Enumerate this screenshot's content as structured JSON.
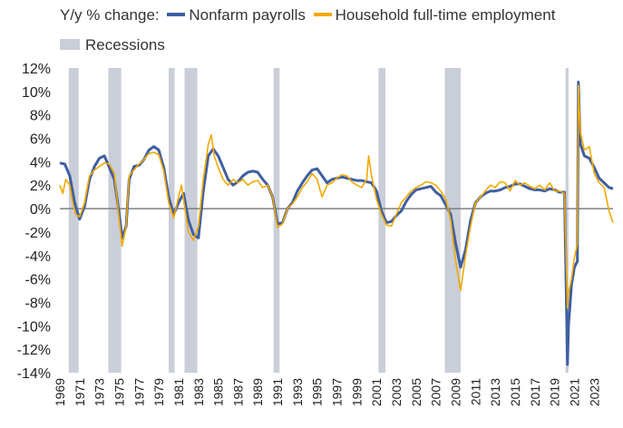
{
  "legend": {
    "prefix": "Y/y % change:",
    "nonfarm": "Nonfarm payrolls",
    "household": "Household full-time employment",
    "recessions": "Recessions"
  },
  "colors": {
    "nonfarm": "#3f5fa1",
    "household": "#f2a900",
    "recession": "#c9ced8",
    "zero_line": "#7f7f7f"
  },
  "chart_data": {
    "type": "line",
    "ylim": [
      -14,
      12
    ],
    "xlim": [
      1969.0,
      2024.9
    ],
    "y_ticks": [
      12,
      10,
      8,
      6,
      4,
      2,
      0,
      -2,
      -4,
      -6,
      -8,
      -10,
      -12,
      -14
    ],
    "y_tick_labels": [
      "12%",
      "10%",
      "8%",
      "6%",
      "4%",
      "2%",
      "0%",
      "-2%",
      "-4%",
      "-6%",
      "-8%",
      "-10%",
      "-12%",
      "-14%"
    ],
    "x_ticks": [
      "1969",
      "1971",
      "1973",
      "1975",
      "1977",
      "1979",
      "1981",
      "1983",
      "1985",
      "1987",
      "1989",
      "1991",
      "1993",
      "1995",
      "1997",
      "1999",
      "2001",
      "2003",
      "2005",
      "2007",
      "2009",
      "2011",
      "2013",
      "2015",
      "2017",
      "2019",
      "2021",
      "2023"
    ],
    "recessions": [
      [
        1969.9,
        1970.9
      ],
      [
        1973.9,
        1975.2
      ],
      [
        1980.0,
        1980.6
      ],
      [
        1981.6,
        1982.9
      ],
      [
        1990.6,
        1991.2
      ],
      [
        2001.2,
        2001.9
      ],
      [
        2007.9,
        2009.5
      ],
      [
        2020.1,
        2020.4
      ]
    ],
    "series": [
      {
        "name": "Nonfarm payrolls",
        "x": [
          1969.0,
          1969.5,
          1970.0,
          1970.5,
          1971.0,
          1971.5,
          1972.0,
          1972.5,
          1973.0,
          1973.5,
          1974.0,
          1974.5,
          1975.0,
          1975.3,
          1975.7,
          1976.0,
          1976.5,
          1977.0,
          1977.5,
          1978.0,
          1978.5,
          1979.0,
          1979.5,
          1980.0,
          1980.5,
          1981.0,
          1981.5,
          1982.0,
          1982.5,
          1983.0,
          1983.5,
          1984.0,
          1984.5,
          1985.0,
          1985.5,
          1986.0,
          1986.5,
          1987.0,
          1987.5,
          1988.0,
          1988.5,
          1989.0,
          1989.5,
          1990.0,
          1990.5,
          1991.0,
          1991.5,
          1992.0,
          1992.5,
          1993.0,
          1993.5,
          1994.0,
          1994.5,
          1995.0,
          1995.5,
          1996.0,
          1996.5,
          1997.0,
          1997.5,
          1998.0,
          1998.5,
          1999.0,
          1999.5,
          2000.0,
          2000.5,
          2001.0,
          2001.5,
          2002.0,
          2002.5,
          2003.0,
          2003.5,
          2004.0,
          2004.5,
          2005.0,
          2005.5,
          2006.0,
          2006.5,
          2007.0,
          2007.5,
          2008.0,
          2008.5,
          2009.0,
          2009.5,
          2010.0,
          2010.5,
          2011.0,
          2011.5,
          2012.0,
          2012.5,
          2013.0,
          2013.5,
          2014.0,
          2014.5,
          2015.0,
          2015.5,
          2016.0,
          2016.5,
          2017.0,
          2017.5,
          2018.0,
          2018.5,
          2019.0,
          2019.5,
          2020.0,
          2020.3,
          2020.4,
          2020.7,
          2021.0,
          2021.3,
          2021.4,
          2021.6,
          2022.0,
          2022.5,
          2023.0,
          2023.5,
          2024.0,
          2024.5,
          2024.9
        ],
        "values": [
          3.9,
          3.8,
          2.8,
          0.5,
          -0.9,
          0.2,
          2.5,
          3.6,
          4.3,
          4.5,
          3.5,
          2.5,
          -0.5,
          -2.5,
          -1.5,
          2.5,
          3.6,
          3.7,
          4.2,
          5.0,
          5.3,
          5.0,
          3.5,
          1.0,
          -0.5,
          0.5,
          1.3,
          -1.0,
          -2.2,
          -2.5,
          1.5,
          4.5,
          5.1,
          4.5,
          3.5,
          2.5,
          2.0,
          2.3,
          2.8,
          3.1,
          3.2,
          3.1,
          2.5,
          2.0,
          1.0,
          -1.3,
          -1.2,
          0.0,
          0.5,
          1.5,
          2.2,
          2.8,
          3.3,
          3.4,
          2.8,
          2.2,
          2.5,
          2.6,
          2.7,
          2.6,
          2.5,
          2.4,
          2.4,
          2.3,
          2.2,
          1.5,
          -0.2,
          -1.2,
          -1.1,
          -0.6,
          -0.2,
          0.6,
          1.2,
          1.6,
          1.7,
          1.8,
          1.9,
          1.4,
          1.1,
          0.3,
          -0.5,
          -3.0,
          -5.0,
          -3.5,
          -1.0,
          0.5,
          1.0,
          1.3,
          1.5,
          1.5,
          1.6,
          1.8,
          1.9,
          2.1,
          2.1,
          1.9,
          1.7,
          1.6,
          1.6,
          1.5,
          1.7,
          1.6,
          1.4,
          1.4,
          -13.3,
          -10.0,
          -6.5,
          -5.0,
          -4.5,
          10.8,
          5.5,
          4.5,
          4.3,
          3.5,
          2.6,
          2.2,
          1.8,
          1.7
        ]
      },
      {
        "name": "Household full-time employment",
        "x": [
          1969.0,
          1969.3,
          1969.6,
          1970.0,
          1970.3,
          1970.6,
          1971.0,
          1971.5,
          1972.0,
          1972.5,
          1973.0,
          1973.5,
          1974.0,
          1974.5,
          1975.0,
          1975.3,
          1975.7,
          1976.0,
          1976.5,
          1977.0,
          1977.5,
          1978.0,
          1978.5,
          1979.0,
          1979.5,
          1980.0,
          1980.5,
          1981.0,
          1981.3,
          1981.6,
          1982.0,
          1982.5,
          1983.0,
          1983.5,
          1984.0,
          1984.3,
          1984.6,
          1985.0,
          1985.5,
          1986.0,
          1986.5,
          1987.0,
          1987.5,
          1988.0,
          1988.5,
          1989.0,
          1989.5,
          1990.0,
          1990.5,
          1991.0,
          1991.5,
          1992.0,
          1992.5,
          1993.0,
          1993.5,
          1994.0,
          1994.5,
          1995.0,
          1995.5,
          1996.0,
          1996.5,
          1997.0,
          1997.5,
          1998.0,
          1998.5,
          1999.0,
          1999.5,
          2000.0,
          2000.2,
          2000.5,
          2001.0,
          2001.5,
          2002.0,
          2002.5,
          2003.0,
          2003.5,
          2004.0,
          2004.5,
          2005.0,
          2005.5,
          2006.0,
          2006.5,
          2007.0,
          2007.5,
          2008.0,
          2008.5,
          2009.0,
          2009.5,
          2010.0,
          2010.5,
          2011.0,
          2011.5,
          2012.0,
          2012.5,
          2013.0,
          2013.5,
          2014.0,
          2014.5,
          2015.0,
          2015.5,
          2016.0,
          2016.5,
          2017.0,
          2017.5,
          2018.0,
          2018.5,
          2019.0,
          2019.5,
          2020.0,
          2020.3,
          2020.4,
          2020.7,
          2021.0,
          2021.3,
          2021.4,
          2021.6,
          2022.0,
          2022.5,
          2023.0,
          2023.5,
          2024.0,
          2024.5,
          2024.9
        ],
        "values": [
          2.0,
          1.3,
          2.5,
          2.0,
          0.5,
          -0.5,
          -0.7,
          0.5,
          2.8,
          3.3,
          3.6,
          3.9,
          3.8,
          3.0,
          -1.0,
          -3.2,
          -1.5,
          2.8,
          3.3,
          3.8,
          4.2,
          4.7,
          4.8,
          4.6,
          3.2,
          0.5,
          -0.8,
          1.0,
          2.0,
          0.2,
          -2.0,
          -2.7,
          -1.5,
          2.5,
          5.5,
          6.3,
          4.5,
          3.5,
          2.5,
          2.0,
          2.5,
          2.2,
          2.5,
          2.0,
          2.3,
          2.4,
          1.8,
          2.0,
          1.0,
          -1.6,
          -1.3,
          0.0,
          0.4,
          1.0,
          1.8,
          2.3,
          3.0,
          2.5,
          1.0,
          2.0,
          2.2,
          2.6,
          2.9,
          2.8,
          2.3,
          2.0,
          1.8,
          2.5,
          4.5,
          2.8,
          0.8,
          -0.5,
          -1.4,
          -1.5,
          -0.5,
          0.5,
          1.0,
          1.5,
          1.8,
          2.0,
          2.3,
          2.2,
          2.0,
          1.5,
          0.8,
          -1.0,
          -4.5,
          -7.0,
          -4.0,
          -1.5,
          0.5,
          1.0,
          1.5,
          2.0,
          1.8,
          2.3,
          2.2,
          1.5,
          2.4,
          2.0,
          2.2,
          1.9,
          1.7,
          2.0,
          1.6,
          2.2,
          1.5,
          1.5,
          1.3,
          -8.5,
          -7.2,
          -6.0,
          -4.2,
          -3.0,
          10.5,
          6.5,
          5.0,
          5.3,
          3.0,
          2.2,
          1.8,
          -0.2,
          -1.2
        ]
      }
    ]
  }
}
